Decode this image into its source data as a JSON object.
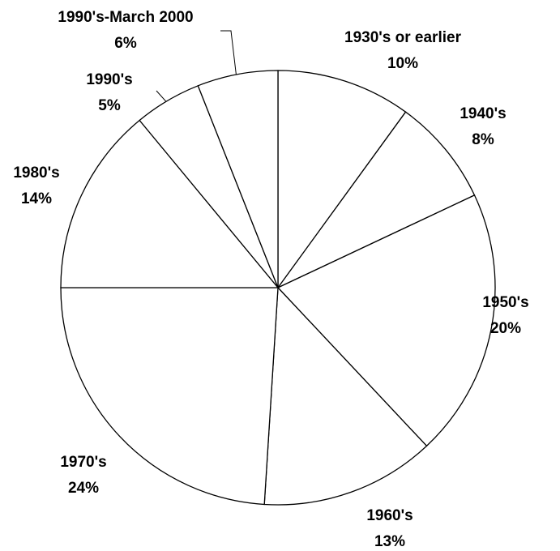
{
  "chart_data": {
    "type": "pie",
    "categories": [
      "1930's or earlier",
      "1940's",
      "1950's",
      "1960's",
      "1970's",
      "1980's",
      "1990's",
      "1990's-March 2000"
    ],
    "values": [
      10,
      8,
      20,
      13,
      24,
      14,
      5,
      6
    ],
    "value_labels": [
      "10%",
      "8%",
      "20%",
      "13%",
      "24%",
      "14%",
      "5%",
      "6%"
    ],
    "color": "#ffffff"
  }
}
